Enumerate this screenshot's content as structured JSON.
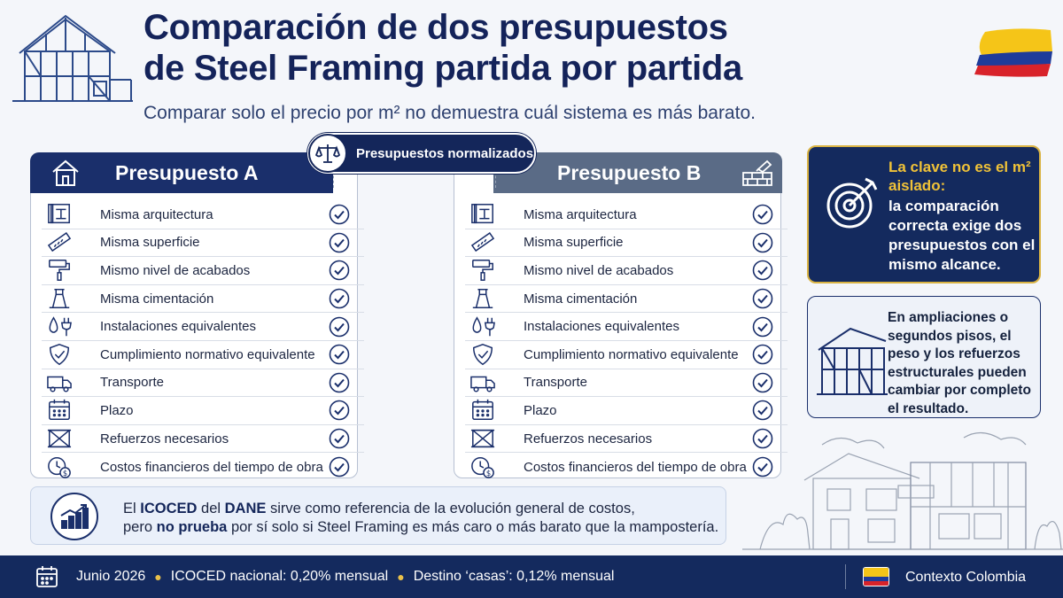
{
  "header": {
    "title_line1": "Comparación de dos presupuestos",
    "title_line2": "de Steel Framing partida por partida",
    "subtitle": "Comparar solo el precio por m² no demuestra cuál sistema es más barato."
  },
  "badge": {
    "label": "Presupuestos normalizados",
    "icon": "scale-icon"
  },
  "budget_a": {
    "title": "Presupuesto A",
    "header_icon": "house-icon",
    "items": [
      {
        "label": "Misma arquitectura",
        "icon": "blueprint-icon"
      },
      {
        "label": "Misma superficie",
        "icon": "ruler-icon"
      },
      {
        "label": "Mismo nivel de acabados",
        "icon": "paint-roller-icon"
      },
      {
        "label": "Misma cimentación",
        "icon": "foundation-icon"
      },
      {
        "label": "Instalaciones equivalentes",
        "icon": "water-plug-icon"
      },
      {
        "label": "Cumplimiento normativo equivalente",
        "icon": "shield-check-icon"
      },
      {
        "label": "Transporte",
        "icon": "truck-icon"
      },
      {
        "label": "Plazo",
        "icon": "calendar-icon"
      },
      {
        "label": "Refuerzos necesarios",
        "icon": "bracing-icon"
      },
      {
        "label": "Costos financieros del tiempo de obra",
        "icon": "clock-money-icon"
      }
    ]
  },
  "budget_b": {
    "title": "Presupuesto B",
    "header_icon": "bricks-trowel-icon",
    "items": [
      {
        "label": "Misma arquitectura",
        "icon": "blueprint-icon"
      },
      {
        "label": "Misma superficie",
        "icon": "ruler-icon"
      },
      {
        "label": "Mismo nivel de acabados",
        "icon": "paint-roller-icon"
      },
      {
        "label": "Misma cimentación",
        "icon": "foundation-icon"
      },
      {
        "label": "Instalaciones equivalentes",
        "icon": "water-plug-icon"
      },
      {
        "label": "Cumplimiento normativo equivalente",
        "icon": "shield-check-icon"
      },
      {
        "label": "Transporte",
        "icon": "truck-icon"
      },
      {
        "label": "Plazo",
        "icon": "calendar-icon"
      },
      {
        "label": "Refuerzos necesarios",
        "icon": "bracing-icon"
      },
      {
        "label": "Costos financieros del tiempo de obra",
        "icon": "clock-money-icon"
      }
    ]
  },
  "key_box": {
    "highlight": "La clave no es el m² aislado:",
    "text": "la comparación correcta exige dos presupuestos con el mismo alcance."
  },
  "note_box": {
    "text": "En ampliaciones o segundos pisos, el peso y los refuerzos estructurales pueden cambiar por completo el resultado."
  },
  "info": {
    "line1_pre": "El ",
    "line1_b1": "ICOCED",
    "line1_mid": " del ",
    "line1_b2": "DANE",
    "line1_post": " sirve como referencia de la evolución general de costos,",
    "line2_pre": "pero ",
    "line2_b": "no prueba",
    "line2_post": " por sí solo si Steel Framing es más caro o más barato que la mampostería."
  },
  "footer": {
    "date": "Junio 2026",
    "national": "ICOCED nacional: 0,20% mensual",
    "houses": "Destino ‘casas’: 0,12% mensual",
    "country": "Contexto Colombia"
  },
  "colors": {
    "navy": "#142a5e",
    "gold": "#f0c238",
    "panel_b_header": "#5a6b86",
    "check": "#1a2f6b"
  }
}
